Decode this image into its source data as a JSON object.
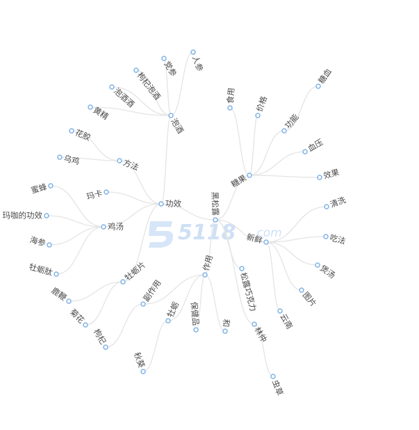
{
  "watermark": {
    "brand": "5118",
    "suffix": ".com"
  },
  "tree": {
    "label": "",
    "children": [
      {
        "label": "黑松露",
        "children": [
          {
            "label": "功效",
            "children": [
              {
                "label": "泡酒",
                "children": [
                  {
                    "label": "人参"
                  },
                  {
                    "label": "党参"
                  },
                  {
                    "label": "枸杞泡酒"
                  },
                  {
                    "label": "泡酒酒"
                  },
                  {
                    "label": "黄精"
                  }
                ]
              },
              {
                "label": "方法",
                "children": [
                  {
                    "label": "花胶"
                  },
                  {
                    "label": "乌鸡"
                  }
                ]
              },
              {
                "label": "玛卡"
              },
              {
                "label": "鸡汤",
                "children": [
                  {
                    "label": "蜜蜂"
                  },
                  {
                    "label": "玛咖的功效"
                  },
                  {
                    "label": "海参"
                  },
                  {
                    "label": "牡蛎肽"
                  }
                ]
              },
              {
                "label": "牡蛎片",
                "children": [
                  {
                    "label": "鹿鞭"
                  },
                  {
                    "label": "菊花"
                  }
                ]
              }
            ]
          },
          {
            "label": "作用",
            "children": [
              {
                "label": "副作用",
                "children": [
                  {
                    "label": "枸杞"
                  }
                ]
              },
              {
                "label": "牡蛎",
                "children": [
                  {
                    "label": "秋葵"
                  }
                ]
              },
              {
                "label": "保健品"
              },
              {
                "label": "和"
              }
            ]
          },
          {
            "label": "松露巧克力"
          },
          {
            "label": "林仲",
            "children": [
              {
                "label": "虫草"
              }
            ]
          },
          {
            "label": "糖果",
            "children": [
              {
                "label": "食用"
              },
              {
                "label": "价格"
              },
              {
                "label": "功能",
                "children": [
                  {
                    "label": "糖血"
                  }
                ]
              },
              {
                "label": "血压"
              },
              {
                "label": "效果"
              }
            ]
          },
          {
            "label": "新鲜",
            "children": [
              {
                "label": "清洗"
              },
              {
                "label": "吃法"
              },
              {
                "label": "煲汤"
              },
              {
                "label": "图片"
              },
              {
                "label": "云南"
              }
            ]
          }
        ]
      }
    ]
  }
}
